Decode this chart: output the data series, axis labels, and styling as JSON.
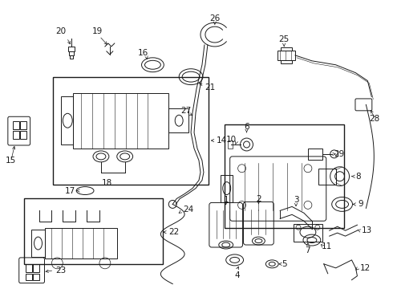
{
  "background_color": "#ffffff",
  "line_color": "#1a1a1a",
  "fig_width": 4.9,
  "fig_height": 3.6,
  "dpi": 100,
  "label_fontsize": 7.5,
  "lw": 0.7
}
